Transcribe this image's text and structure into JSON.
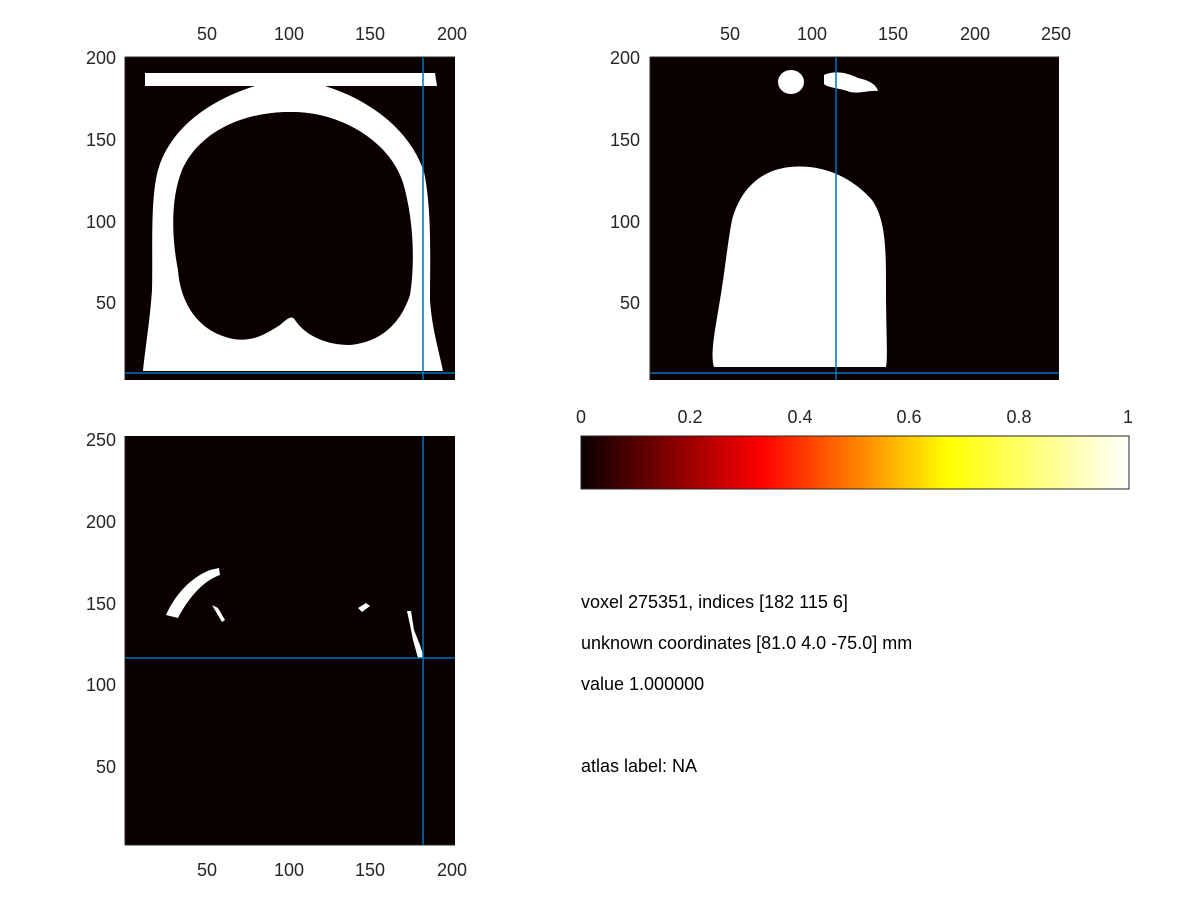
{
  "figure": {
    "panels": {
      "top_left": {
        "x_ticks": [
          "50",
          "100",
          "150",
          "200"
        ],
        "y_ticks": [
          "200",
          "150",
          "100",
          "50"
        ],
        "crosshair_x": 182,
        "crosshair_y": 6
      },
      "top_right": {
        "x_ticks": [
          "50",
          "100",
          "150",
          "200",
          "250"
        ],
        "y_ticks": [
          "200",
          "150",
          "100",
          "50"
        ],
        "crosshair_x": 115,
        "crosshair_y": 6
      },
      "bottom_left": {
        "x_ticks": [
          "50",
          "100",
          "150",
          "200"
        ],
        "y_ticks": [
          "250",
          "200",
          "150",
          "100",
          "50"
        ],
        "crosshair_x": 182,
        "crosshair_y": 115
      }
    },
    "colorbar": {
      "ticks": [
        "0",
        "0.2",
        "0.4",
        "0.6",
        "0.8",
        "1"
      ],
      "colormap": "hot"
    },
    "info": {
      "voxel_line": "voxel 275351, indices [182 115 6]",
      "coords_line": "unknown coordinates [81.0 4.0 -75.0] mm",
      "value_line": "value 1.000000",
      "atlas_line": "atlas label: NA"
    },
    "colors": {
      "background": "#0a0000",
      "mask": "#ffffff",
      "crosshair": "#0072bd",
      "axes": "#262626"
    }
  }
}
